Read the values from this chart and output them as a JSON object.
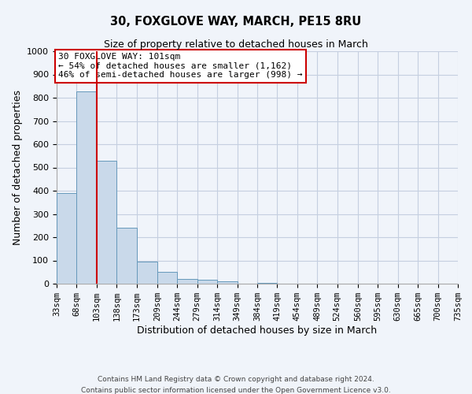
{
  "title": "30, FOXGLOVE WAY, MARCH, PE15 8RU",
  "subtitle": "Size of property relative to detached houses in March",
  "xlabel": "Distribution of detached houses by size in March",
  "ylabel": "Number of detached properties",
  "bar_color": "#c9d9ea",
  "bar_edge_color": "#6699bb",
  "background_color": "#f0f4fa",
  "grid_color": "#c5cfe0",
  "bin_edges": [
    33,
    68,
    103,
    138,
    173,
    209,
    244,
    279,
    314,
    349,
    384,
    419,
    454,
    489,
    524,
    560,
    595,
    630,
    665,
    700,
    735
  ],
  "bin_labels": [
    "33sqm",
    "68sqm",
    "103sqm",
    "138sqm",
    "173sqm",
    "209sqm",
    "244sqm",
    "279sqm",
    "314sqm",
    "349sqm",
    "384sqm",
    "419sqm",
    "454sqm",
    "489sqm",
    "524sqm",
    "560sqm",
    "595sqm",
    "630sqm",
    "665sqm",
    "700sqm",
    "735sqm"
  ],
  "bar_heights": [
    390,
    828,
    530,
    242,
    95,
    50,
    20,
    17,
    10,
    0,
    5,
    0,
    0,
    0,
    0,
    0,
    0,
    0,
    0,
    0
  ],
  "property_line_x": 103,
  "property_line_color": "#cc0000",
  "ylim": [
    0,
    1000
  ],
  "yticks": [
    0,
    100,
    200,
    300,
    400,
    500,
    600,
    700,
    800,
    900,
    1000
  ],
  "annotation_text": "30 FOXGLOVE WAY: 101sqm\n← 54% of detached houses are smaller (1,162)\n46% of semi-detached houses are larger (998) →",
  "annotation_box_color": "#ffffff",
  "annotation_box_edge_color": "#cc0000",
  "footer_line1": "Contains HM Land Registry data © Crown copyright and database right 2024.",
  "footer_line2": "Contains public sector information licensed under the Open Government Licence v3.0."
}
